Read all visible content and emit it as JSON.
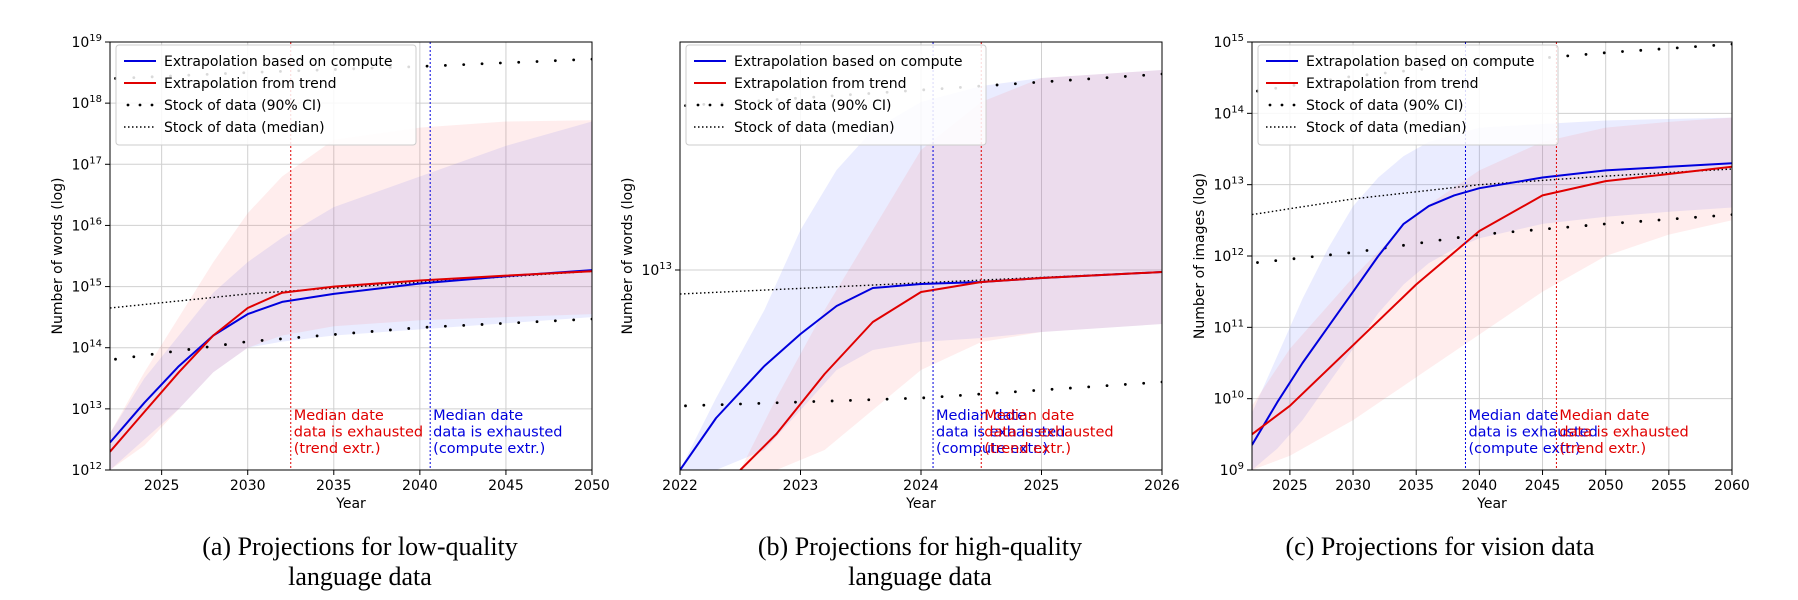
{
  "legend_labels": {
    "compute": "Extrapolation based on compute",
    "trend": "Extrapolation from trend",
    "ci": "Stock of data (90% CI)",
    "median": "Stock of data (median)"
  },
  "colors": {
    "compute": "#0000dd",
    "trend": "#e00000",
    "stock": "#000000"
  },
  "chart_data": [
    {
      "id": "a",
      "type": "line",
      "ylabel": "Number of words (log)",
      "xlabel": "Year",
      "xlim": [
        2022,
        2050
      ],
      "ylim": [
        12,
        19
      ],
      "yscale": "log",
      "xticks": [
        2025,
        2030,
        2035,
        2040,
        2045,
        2050
      ],
      "xtick_labels": [
        "2025",
        "2030",
        "2035",
        "2040",
        "2045",
        "2050"
      ],
      "yticks": [
        12,
        13,
        14,
        15,
        16,
        17,
        18,
        19
      ],
      "grid": true,
      "legend": "upper-left",
      "caption_lines": [
        "(a) Projections for low-quality",
        "language data"
      ],
      "series": [
        {
          "key": "compute",
          "name": "Extrapolation based on compute",
          "x": [
            2022,
            2024,
            2026,
            2028,
            2030,
            2032,
            2035,
            2040,
            2045,
            2050
          ],
          "y": [
            12.45,
            13.1,
            13.7,
            14.2,
            14.55,
            14.75,
            14.88,
            15.05,
            15.17,
            15.27
          ],
          "band_lo": [
            12.0,
            12.5,
            13.0,
            13.6,
            14.0,
            14.1,
            14.2,
            14.3,
            14.4,
            14.5
          ],
          "band_hi": [
            12.6,
            13.5,
            14.2,
            14.9,
            15.4,
            15.8,
            16.3,
            16.8,
            17.3,
            17.7
          ]
        },
        {
          "key": "trend",
          "name": "Extrapolation from trend",
          "x": [
            2022,
            2024,
            2026,
            2028,
            2030,
            2032,
            2035,
            2040,
            2045,
            2050
          ],
          "y": [
            12.3,
            12.95,
            13.6,
            14.2,
            14.65,
            14.9,
            15.0,
            15.1,
            15.18,
            15.25
          ],
          "band_lo": [
            12.0,
            12.4,
            13.0,
            13.6,
            14.0,
            14.2,
            14.35,
            14.45,
            14.5,
            14.55
          ],
          "band_hi": [
            12.6,
            13.6,
            14.5,
            15.4,
            16.2,
            16.8,
            17.4,
            17.6,
            17.7,
            17.72
          ]
        }
      ],
      "stock": {
        "x": [
          2022,
          2030,
          2040,
          2050
        ],
        "median": [
          14.65,
          14.88,
          15.07,
          15.25
        ],
        "ci_lo": [
          13.8,
          14.1,
          14.33,
          14.47
        ],
        "ci_hi": [
          18.4,
          18.5,
          18.6,
          18.72
        ]
      },
      "vlines": [
        {
          "x": 2032.5,
          "color_key": "trend",
          "lines": [
            "Median date",
            "data is exhausted",
            "(trend extr.)"
          ]
        },
        {
          "x": 2040.6,
          "color_key": "compute",
          "lines": [
            "Median date",
            "data is exhausted",
            "(compute extr.)"
          ]
        }
      ]
    },
    {
      "id": "b",
      "type": "line",
      "ylabel": "Number of words (log)",
      "xlabel": "Year",
      "xlim": [
        2022,
        2026
      ],
      "ylim": [
        12.5,
        13.57
      ],
      "yscale": "log",
      "xticks": [
        2022,
        2023,
        2024,
        2025,
        2026
      ],
      "xtick_labels": [
        "2022",
        "2023",
        "2024",
        "2025",
        "2026"
      ],
      "yticks": [
        13
      ],
      "grid": true,
      "legend": "upper-left",
      "caption_lines": [
        "(b) Projections for high-quality",
        "language data"
      ],
      "series": [
        {
          "key": "compute",
          "name": "Extrapolation based on compute",
          "x": [
            2022,
            2022.3,
            2022.7,
            2023,
            2023.3,
            2023.6,
            2024,
            2024.5,
            2025,
            2026
          ],
          "y": [
            12.5,
            12.63,
            12.76,
            12.84,
            12.91,
            12.955,
            12.965,
            12.97,
            12.98,
            12.995
          ],
          "band_lo": [
            12.5,
            12.5,
            12.55,
            12.65,
            12.75,
            12.8,
            12.82,
            12.83,
            12.845,
            12.865
          ],
          "band_hi": [
            12.5,
            12.68,
            12.9,
            13.1,
            13.25,
            13.35,
            13.42,
            13.46,
            13.48,
            13.5
          ]
        },
        {
          "key": "trend",
          "name": "Extrapolation from trend",
          "x": [
            2022.5,
            2022.8,
            2023.2,
            2023.6,
            2024,
            2024.5,
            2025,
            2026
          ],
          "y": [
            12.5,
            12.59,
            12.74,
            12.87,
            12.945,
            12.97,
            12.98,
            12.995
          ],
          "band_lo": [
            12.5,
            12.5,
            12.55,
            12.65,
            12.75,
            12.82,
            12.845,
            12.865
          ],
          "band_hi": [
            12.5,
            12.68,
            12.9,
            13.1,
            13.3,
            13.42,
            13.48,
            13.5
          ]
        }
      ],
      "stock": {
        "x": [
          2022,
          2024,
          2026
        ],
        "median": [
          12.94,
          12.968,
          12.995
        ],
        "ci_lo": [
          12.66,
          12.68,
          12.72
        ],
        "ci_hi": [
          13.41,
          13.45,
          13.49
        ]
      },
      "vlines": [
        {
          "x": 2024.1,
          "color_key": "compute",
          "lines": [
            "Median date",
            "data is exhausted",
            "(compute extr.)"
          ]
        },
        {
          "x": 2024.5,
          "color_key": "trend",
          "lines": [
            "Median date",
            "data is exhausted",
            "(trend extr.)"
          ]
        }
      ]
    },
    {
      "id": "c",
      "type": "line",
      "ylabel": "Number of images (log)",
      "xlabel": "Year",
      "xlim": [
        2022,
        2060
      ],
      "ylim": [
        9,
        15
      ],
      "yscale": "log",
      "xticks": [
        2025,
        2030,
        2035,
        2040,
        2045,
        2050,
        2055,
        2060
      ],
      "xtick_labels": [
        "2025",
        "2030",
        "2035",
        "2040",
        "2045",
        "2050",
        "2055",
        "2060"
      ],
      "yticks": [
        9,
        10,
        11,
        12,
        13,
        14,
        15
      ],
      "grid": true,
      "legend": "upper-left",
      "caption_lines": [
        "(c) Projections for vision data"
      ],
      "series": [
        {
          "key": "compute",
          "name": "Extrapolation based on compute",
          "x": [
            2022,
            2024,
            2026,
            2028,
            2030,
            2032,
            2034,
            2036,
            2038,
            2040,
            2045,
            2050,
            2055,
            2060
          ],
          "y": [
            9.35,
            9.95,
            10.5,
            11.0,
            11.5,
            12.0,
            12.45,
            12.7,
            12.85,
            12.95,
            13.1,
            13.2,
            13.25,
            13.3
          ],
          "band_lo": [
            9.0,
            9.3,
            9.7,
            10.2,
            10.7,
            11.2,
            11.6,
            11.9,
            12.1,
            12.25,
            12.45,
            12.55,
            12.62,
            12.68
          ],
          "band_hi": [
            9.8,
            10.6,
            11.4,
            12.1,
            12.7,
            13.1,
            13.4,
            13.6,
            13.7,
            13.8,
            13.85,
            13.9,
            13.92,
            13.94
          ]
        },
        {
          "key": "trend",
          "name": "Extrapolation from trend",
          "x": [
            2022,
            2025,
            2030,
            2035,
            2040,
            2045,
            2050,
            2055,
            2060
          ],
          "y": [
            9.5,
            9.9,
            10.75,
            11.6,
            12.35,
            12.85,
            13.05,
            13.15,
            13.25
          ],
          "band_lo": [
            9.0,
            9.2,
            9.7,
            10.3,
            10.9,
            11.5,
            12.0,
            12.3,
            12.5
          ],
          "band_hi": [
            9.9,
            10.7,
            11.7,
            12.6,
            13.2,
            13.6,
            13.8,
            13.88,
            13.94
          ]
        }
      ],
      "stock": {
        "x": [
          2022,
          2030,
          2040,
          2050,
          2060
        ],
        "median": [
          12.58,
          12.8,
          13.0,
          13.12,
          13.22
        ],
        "ci_lo": [
          11.9,
          12.05,
          12.3,
          12.45,
          12.58
        ],
        "ci_hi": [
          14.3,
          14.52,
          14.7,
          14.85,
          14.97
        ]
      },
      "vlines": [
        {
          "x": 2038.9,
          "color_key": "compute",
          "lines": [
            "Median date",
            "data is exhausted",
            "(compute extr.)"
          ]
        },
        {
          "x": 2046.1,
          "color_key": "trend",
          "lines": [
            "Median date",
            "data is exhausted",
            "(trend extr.)"
          ]
        }
      ]
    }
  ]
}
